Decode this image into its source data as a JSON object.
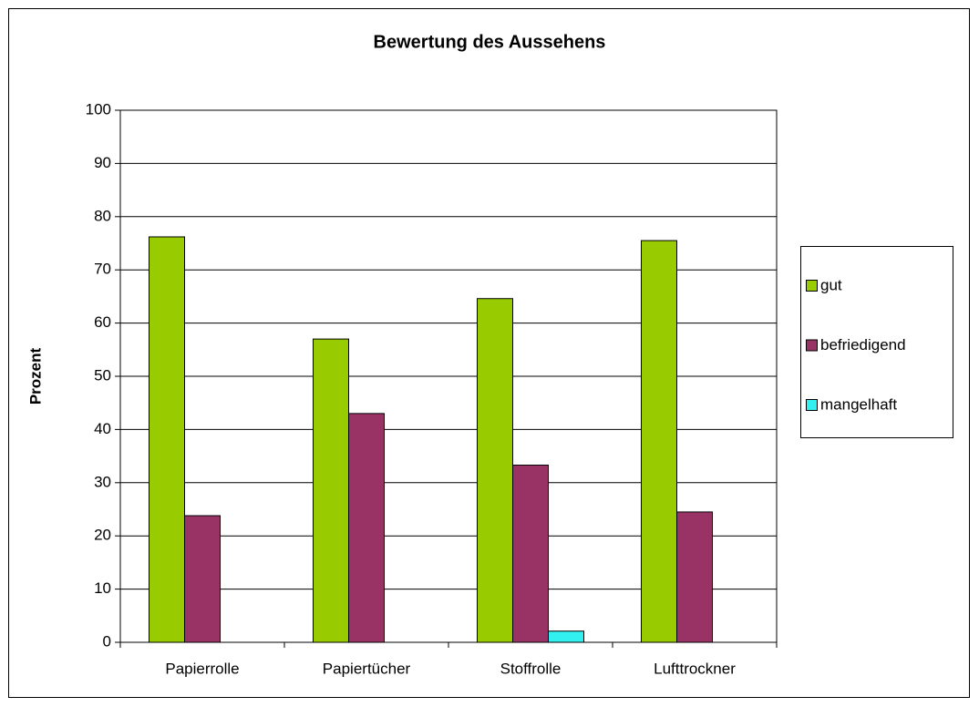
{
  "chart_data": {
    "type": "bar",
    "title": "Bewertung des Aussehens",
    "y_label": "Prozent",
    "categories": [
      "Papierrolle",
      "Papiertücher",
      "Stoffrolle",
      "Lufttrockner"
    ],
    "series": [
      {
        "name": "gut",
        "color": "#99cc00",
        "values": [
          76.2,
          57.0,
          64.6,
          75.5
        ]
      },
      {
        "name": "befriedigend",
        "color": "#993366",
        "values": [
          23.8,
          43.0,
          33.3,
          24.5
        ]
      },
      {
        "name": "mangelhaft",
        "color": "#33f0f0",
        "values": [
          0,
          0,
          2.1,
          0
        ]
      }
    ],
    "ylim": [
      0,
      100
    ],
    "yticks": [
      0,
      10,
      20,
      30,
      40,
      50,
      60,
      70,
      80,
      90,
      100
    ],
    "grid": true,
    "legend": "right"
  }
}
